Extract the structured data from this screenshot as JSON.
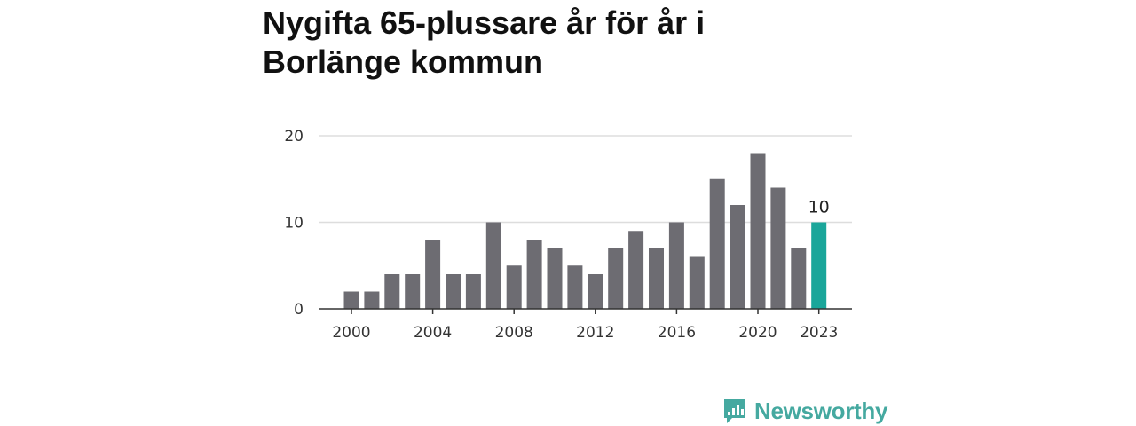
{
  "title": "Nygifta 65-plussare år för år i Borlänge kommun",
  "brand": {
    "name": "Newsworthy",
    "icon": "newsworthy-logo-icon",
    "color": "#45a9a0"
  },
  "colors": {
    "bar": "#6d6c72",
    "highlight": "#1aa69a",
    "grid": "#dddddd",
    "axis": "#333333"
  },
  "chart_data": {
    "type": "bar",
    "title": "Nygifta 65-plussare år för år i Borlänge kommun",
    "xlabel": "",
    "ylabel": "",
    "categories": [
      2000,
      2001,
      2002,
      2003,
      2004,
      2005,
      2006,
      2007,
      2008,
      2009,
      2010,
      2011,
      2012,
      2013,
      2014,
      2015,
      2016,
      2017,
      2018,
      2019,
      2020,
      2021,
      2022,
      2023
    ],
    "values": [
      2,
      2,
      4,
      4,
      8,
      4,
      4,
      10,
      5,
      8,
      7,
      5,
      4,
      7,
      9,
      7,
      10,
      6,
      15,
      12,
      18,
      14,
      7,
      10
    ],
    "ylim": [
      0,
      20
    ],
    "yticks": [
      0,
      10,
      20
    ],
    "xticks": [
      "2000",
      "2004",
      "2008",
      "2012",
      "2016",
      "2020",
      "2023"
    ],
    "highlight": {
      "category": 2023,
      "label": "10"
    },
    "grid": true
  }
}
